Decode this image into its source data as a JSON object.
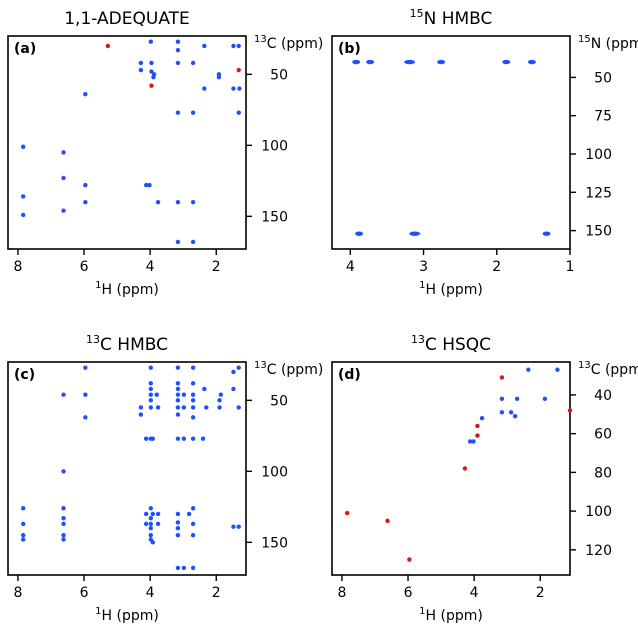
{
  "colors": {
    "positive": "#1f4fff",
    "negative": "#d81818",
    "frame": "#000000"
  },
  "chart_data": [
    {
      "type": "scatter",
      "panel": "(a)",
      "title": "1,1-ADEQUATE",
      "xlabel": "ppm",
      "x_nucleus": "1",
      "x_nucleus_sym": "H",
      "ylabel": "ppm",
      "y_nucleus": "13",
      "y_nucleus_sym": "C",
      "xlim": [
        8.3,
        1.1
      ],
      "ylim": [
        23,
        173
      ],
      "xticks": [
        8,
        6,
        4,
        2
      ],
      "yticks": [
        50,
        100,
        150
      ],
      "grid": false,
      "series": [
        {
          "sign": "positive",
          "points": [
            [
              3.98,
              27
            ],
            [
              3.16,
              27
            ],
            [
              2.36,
              30
            ],
            [
              1.48,
              30
            ],
            [
              1.32,
              30
            ],
            [
              3.16,
              33
            ],
            [
              4.28,
              42
            ],
            [
              3.96,
              42
            ],
            [
              3.16,
              42
            ],
            [
              2.7,
              42
            ],
            [
              4.28,
              47
            ],
            [
              3.96,
              48
            ],
            [
              3.88,
              50
            ],
            [
              3.9,
              52
            ],
            [
              1.92,
              50
            ],
            [
              1.92,
              52
            ],
            [
              1.48,
              60
            ],
            [
              1.3,
              60
            ],
            [
              2.36,
              60
            ],
            [
              5.96,
              64
            ],
            [
              1.32,
              77
            ],
            [
              3.16,
              77
            ],
            [
              2.7,
              77
            ],
            [
              7.84,
              101
            ],
            [
              6.62,
              105
            ],
            [
              6.62,
              123
            ],
            [
              5.96,
              128
            ],
            [
              4.12,
              128
            ],
            [
              4.02,
              128
            ],
            [
              7.84,
              136
            ],
            [
              5.96,
              140
            ],
            [
              3.76,
              140
            ],
            [
              3.16,
              140
            ],
            [
              2.7,
              140
            ],
            [
              6.62,
              146
            ],
            [
              7.84,
              149
            ],
            [
              3.16,
              168
            ],
            [
              2.7,
              168
            ]
          ]
        },
        {
          "sign": "negative",
          "points": [
            [
              5.28,
              30
            ],
            [
              3.96,
              58
            ],
            [
              1.32,
              47
            ]
          ]
        }
      ]
    },
    {
      "type": "scatter",
      "panel": "(b)",
      "title": "N HMBC",
      "title_sup": "15",
      "xlabel": "ppm",
      "x_nucleus": "1",
      "x_nucleus_sym": "H",
      "ylabel": "ppm",
      "y_nucleus": "15",
      "y_nucleus_sym": "N",
      "xlim": [
        4.25,
        1
      ],
      "ylim": [
        23,
        162
      ],
      "xticks": [
        4,
        3,
        2,
        1
      ],
      "yticks": [
        50,
        75,
        100,
        125,
        150
      ],
      "grid": false,
      "series": [
        {
          "sign": "positive",
          "points": [
            [
              3.92,
              40
            ],
            [
              3.73,
              40
            ],
            [
              3.19,
              40
            ],
            [
              2.76,
              40
            ],
            [
              1.87,
              40
            ],
            [
              1.52,
              40
            ],
            [
              3.88,
              152
            ],
            [
              3.12,
              152
            ],
            [
              1.32,
              152
            ]
          ]
        }
      ]
    },
    {
      "type": "scatter",
      "panel": "(c)",
      "title": "C HMBC",
      "title_sup": "13",
      "xlabel": "ppm",
      "x_nucleus": "1",
      "x_nucleus_sym": "H",
      "ylabel": "ppm",
      "y_nucleus": "13",
      "y_nucleus_sym": "C",
      "xlim": [
        8.3,
        1.1
      ],
      "ylim": [
        23,
        173
      ],
      "xticks": [
        8,
        6,
        4,
        2
      ],
      "yticks": [
        50,
        100,
        150
      ],
      "grid": false,
      "series": [
        {
          "sign": "positive",
          "points": [
            [
              5.96,
              27
            ],
            [
              3.98,
              27
            ],
            [
              3.16,
              27
            ],
            [
              2.7,
              27
            ],
            [
              1.32,
              27
            ],
            [
              1.48,
              30
            ],
            [
              3.98,
              38
            ],
            [
              3.16,
              38
            ],
            [
              2.7,
              38
            ],
            [
              3.98,
              42
            ],
            [
              3.16,
              42
            ],
            [
              2.36,
              42
            ],
            [
              1.48,
              42
            ],
            [
              6.62,
              46
            ],
            [
              5.96,
              46
            ],
            [
              3.98,
              46
            ],
            [
              3.8,
              46
            ],
            [
              3.16,
              46
            ],
            [
              2.98,
              46
            ],
            [
              2.7,
              46
            ],
            [
              1.86,
              46
            ],
            [
              3.98,
              50
            ],
            [
              3.16,
              50
            ],
            [
              2.7,
              50
            ],
            [
              1.9,
              50
            ],
            [
              4.28,
              55
            ],
            [
              3.98,
              55
            ],
            [
              3.76,
              55
            ],
            [
              3.16,
              55
            ],
            [
              2.98,
              55
            ],
            [
              2.7,
              55
            ],
            [
              2.3,
              55
            ],
            [
              1.9,
              55
            ],
            [
              1.32,
              55
            ],
            [
              5.96,
              62
            ],
            [
              4.28,
              60
            ],
            [
              3.16,
              60
            ],
            [
              2.7,
              62
            ],
            [
              4.12,
              77
            ],
            [
              3.98,
              77
            ],
            [
              3.92,
              77
            ],
            [
              3.16,
              77
            ],
            [
              2.98,
              77
            ],
            [
              2.7,
              77
            ],
            [
              2.4,
              77
            ],
            [
              6.62,
              100
            ],
            [
              7.84,
              126
            ],
            [
              6.62,
              126
            ],
            [
              3.98,
              126
            ],
            [
              2.7,
              126
            ],
            [
              4.12,
              130
            ],
            [
              3.92,
              130
            ],
            [
              3.76,
              130
            ],
            [
              3.16,
              130
            ],
            [
              2.82,
              130
            ],
            [
              6.62,
              133
            ],
            [
              3.98,
              133
            ],
            [
              3.16,
              136
            ],
            [
              7.84,
              137
            ],
            [
              6.62,
              137
            ],
            [
              4.12,
              137
            ],
            [
              3.98,
              137
            ],
            [
              3.76,
              137
            ],
            [
              2.7,
              137
            ],
            [
              1.48,
              139
            ],
            [
              1.32,
              139
            ],
            [
              3.98,
              140
            ],
            [
              3.16,
              140
            ],
            [
              7.84,
              145
            ],
            [
              6.62,
              145
            ],
            [
              3.98,
              145
            ],
            [
              3.16,
              145
            ],
            [
              2.7,
              145
            ],
            [
              7.84,
              148
            ],
            [
              6.62,
              148
            ],
            [
              3.98,
              148
            ],
            [
              3.92,
              150
            ],
            [
              3.16,
              168
            ],
            [
              2.98,
              168
            ],
            [
              2.7,
              168
            ]
          ]
        }
      ]
    },
    {
      "type": "scatter",
      "panel": "(d)",
      "title": "C HSQC",
      "title_sup": "13",
      "xlabel": "ppm",
      "x_nucleus": "1",
      "x_nucleus_sym": "H",
      "ylabel": "ppm",
      "y_nucleus": "13",
      "y_nucleus_sym": "C",
      "xlim": [
        8.3,
        1.1
      ],
      "ylim": [
        23,
        133
      ],
      "xticks": [
        8,
        6,
        4,
        2
      ],
      "yticks": [
        40,
        60,
        80,
        100,
        120
      ],
      "grid": false,
      "series": [
        {
          "sign": "positive",
          "points": [
            [
              2.36,
              27
            ],
            [
              1.48,
              27
            ],
            [
              3.16,
              42
            ],
            [
              2.7,
              42
            ],
            [
              1.86,
              42
            ],
            [
              3.16,
              49
            ],
            [
              2.88,
              49
            ],
            [
              3.76,
              52
            ],
            [
              2.76,
              51
            ],
            [
              4.12,
              64
            ],
            [
              4.02,
              64
            ]
          ]
        },
        {
          "sign": "negative",
          "points": [
            [
              3.16,
              31
            ],
            [
              3.9,
              56
            ],
            [
              3.9,
              61
            ],
            [
              1.1,
              48
            ],
            [
              4.28,
              78
            ],
            [
              7.84,
              101
            ],
            [
              6.62,
              105
            ],
            [
              5.96,
              125
            ]
          ]
        }
      ]
    }
  ]
}
